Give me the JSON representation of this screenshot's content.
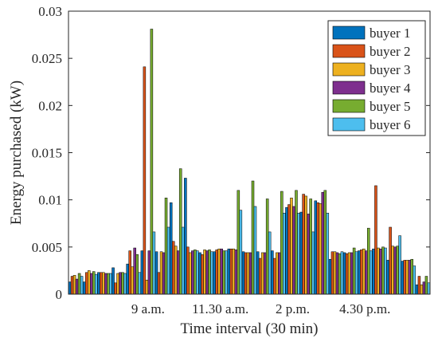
{
  "chart_data": {
    "type": "bar",
    "xlabel": "Time interval (30 min)",
    "ylabel": "Energy purchased (kW)",
    "ylim": [
      0,
      0.03
    ],
    "yticks": [
      "0",
      "0.005",
      "0.01",
      "0.015",
      "0.02",
      "0.025",
      "0.03"
    ],
    "xticks": [
      {
        "interval": 6,
        "label": "9 a.m."
      },
      {
        "interval": 11,
        "label": "11.30 a.m."
      },
      {
        "interval": 16,
        "label": "2 p.m."
      },
      {
        "interval": 21,
        "label": "4.30 p.m."
      }
    ],
    "legend_position": "top-right",
    "grid": false,
    "categories": [
      "1",
      "2",
      "3",
      "4",
      "5",
      "6",
      "7",
      "8",
      "9",
      "10",
      "11",
      "12",
      "13",
      "14",
      "15",
      "16",
      "17",
      "18",
      "19",
      "20",
      "21",
      "22",
      "23",
      "24",
      "25"
    ],
    "series": [
      {
        "name": "buyer 1",
        "color": "#0072BD",
        "values": [
          0.0013,
          0.0013,
          0.0023,
          0.0028,
          0.0032,
          0.0046,
          0.0045,
          0.0097,
          0.0123,
          0.0044,
          0.0045,
          0.0048,
          0.0045,
          0.0045,
          0.0046,
          0.0092,
          0.0087,
          0.0099,
          0.0037,
          0.0044,
          0.0046,
          0.0048,
          0.0036,
          0.0035,
          0.001
        ]
      },
      {
        "name": "buyer 2",
        "color": "#D95319",
        "values": [
          0.0019,
          0.0023,
          0.0023,
          0.0012,
          0.0046,
          0.0241,
          0.0023,
          0.0056,
          0.005,
          0.0042,
          0.0047,
          0.0048,
          0.0044,
          0.0038,
          0.0038,
          0.0095,
          0.0106,
          0.0097,
          0.0045,
          0.0043,
          0.0047,
          0.0115,
          0.0071,
          0.0036,
          0.0019
        ]
      },
      {
        "name": "buyer 3",
        "color": "#EDB120",
        "values": [
          0.002,
          0.0025,
          0.0023,
          0.0022,
          0.0029,
          0.0015,
          0.0045,
          0.0051,
          0.0044,
          0.0047,
          0.0048,
          0.0048,
          0.0044,
          0.0044,
          0.0044,
          0.0102,
          0.0104,
          0.0096,
          0.0045,
          0.0044,
          0.0048,
          0.0049,
          0.0051,
          0.0036,
          0.001
        ]
      },
      {
        "name": "buyer 4",
        "color": "#7E2F8E",
        "values": [
          0.0016,
          0.0022,
          0.0022,
          0.0023,
          0.0049,
          0.0046,
          0.0044,
          0.0046,
          0.0046,
          0.0046,
          0.0048,
          0.0047,
          0.0044,
          0.0044,
          0.0044,
          0.0093,
          0.0085,
          0.0108,
          0.0044,
          0.0044,
          0.0046,
          0.0048,
          0.005,
          0.0036,
          0.0013
        ]
      },
      {
        "name": "buyer 5",
        "color": "#77AC30",
        "values": [
          0.0022,
          0.0024,
          0.0022,
          0.0023,
          0.0042,
          0.0281,
          0.0102,
          0.0133,
          0.0047,
          0.0047,
          0.0046,
          0.011,
          0.012,
          0.0101,
          0.0109,
          0.011,
          0.0101,
          0.011,
          0.0043,
          0.0049,
          0.007,
          0.005,
          0.0051,
          0.0037,
          0.0019
        ]
      },
      {
        "name": "buyer 6",
        "color": "#4DBEEE",
        "values": [
          0.0019,
          0.0021,
          0.0022,
          0.0022,
          0.0023,
          0.0066,
          0.0071,
          0.0071,
          0.0046,
          0.0045,
          0.0046,
          0.0089,
          0.0093,
          0.0066,
          0.0086,
          0.0086,
          0.0066,
          0.0086,
          0.0045,
          0.0045,
          0.0046,
          0.0049,
          0.0062,
          0.003,
          0.0012
        ]
      }
    ]
  }
}
